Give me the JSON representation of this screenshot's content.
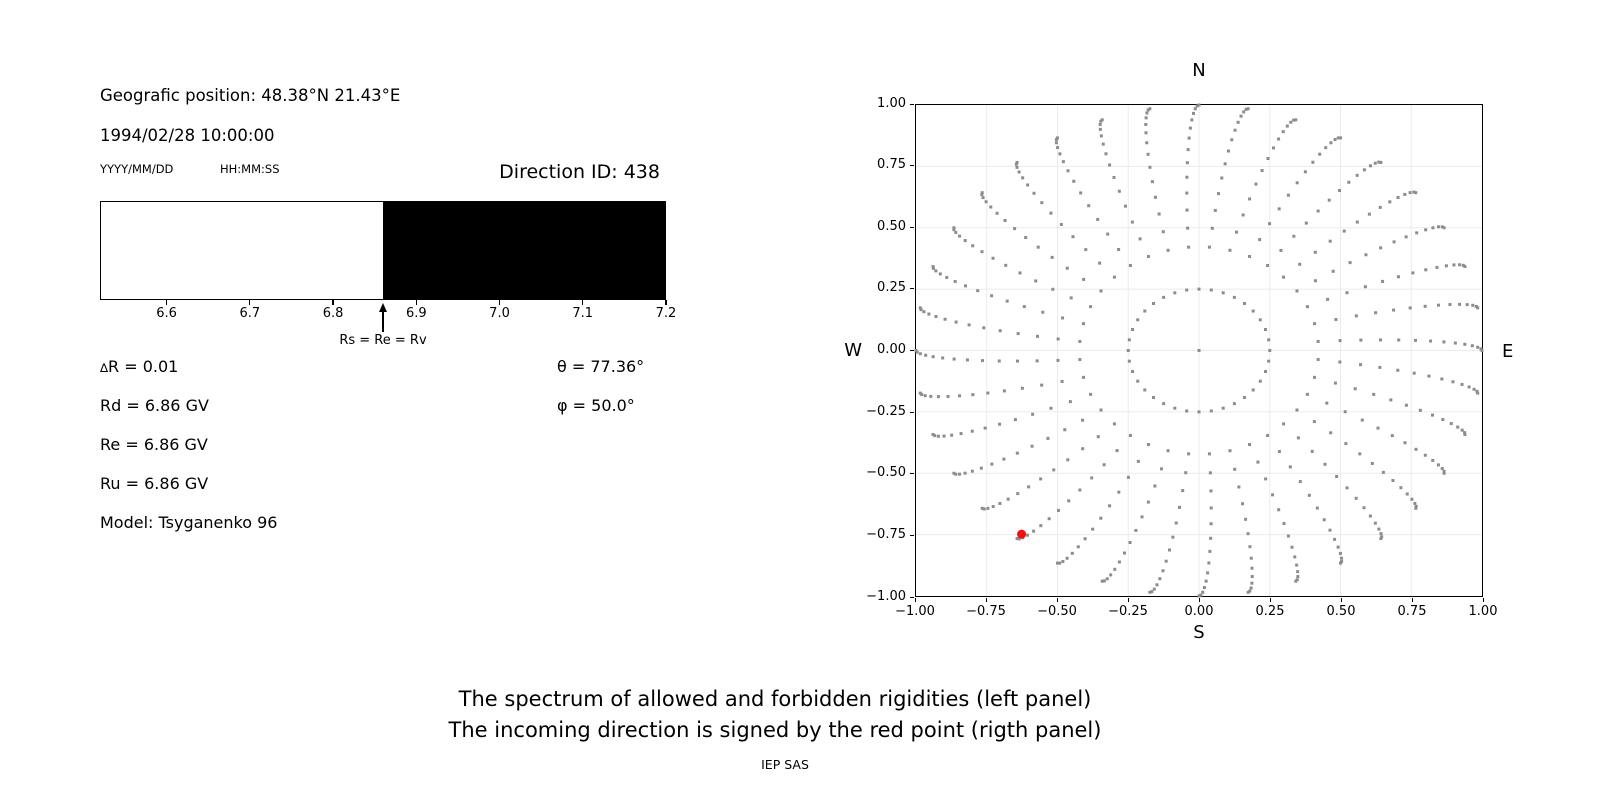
{
  "header": {
    "geo_position": "Geografic position: 48.38°N 21.43°E",
    "datetime": "1994/02/28 10:00:00",
    "date_format": "YYYY/MM/DD",
    "time_format": "HH:MM:SS"
  },
  "parameters": {
    "delta_symbol": "∆",
    "delta_rest": "R = 0.01",
    "rd": "Rd = 6.86 GV",
    "re": "Re = 6.86 GV",
    "ru": "Ru = 6.86 GV",
    "model": "Model: Tsyganenko 96",
    "theta": "θ = 77.36°",
    "phi": "φ = 50.0°"
  },
  "footer": {
    "caption_line1": "The spectrum of allowed and forbidden rigidities (left panel)",
    "caption_line2": "The incoming direction is signed by the red point (rigth panel)",
    "credit": "IEP SAS"
  },
  "chart_data": [
    {
      "type": "bar",
      "title": "Direction ID: 438",
      "xlim": [
        6.52,
        7.2
      ],
      "xticks": [
        6.6,
        6.7,
        6.8,
        6.9,
        7.0,
        7.1,
        7.2
      ],
      "tick_decimals": 1,
      "segments": [
        {
          "name": "allowed-rigidities",
          "from": 6.52,
          "to": 6.86,
          "color": "#ffffff"
        },
        {
          "name": "forbidden-rigidities",
          "from": 6.86,
          "to": 7.2,
          "color": "#000000"
        }
      ],
      "annotation": {
        "label": "Rs = Re = Rv",
        "x": 6.86
      }
    },
    {
      "type": "scatter",
      "compass": {
        "north": "N",
        "east": "E",
        "south": "S",
        "west": "W"
      },
      "xlim": [
        -1,
        1
      ],
      "ylim": [
        -1,
        1
      ],
      "xticks": [
        -1,
        -0.75,
        -0.5,
        -0.25,
        0,
        0.25,
        0.5,
        0.75,
        1
      ],
      "yticks": [
        -1,
        -0.75,
        -0.5,
        -0.25,
        0,
        0.25,
        0.5,
        0.75,
        1
      ],
      "tick_decimals": 2,
      "grid": true,
      "grid_color": "#ebebeb",
      "series": [
        {
          "name": "direction-grid-dots",
          "marker": "square",
          "color": "#8c8c8c",
          "generator": {
            "azimuth_count": 36,
            "azimuth_step_deg": 10,
            "zenith_start_deg": 25,
            "zenith_end_deg": 90,
            "zenith_step_deg": 5,
            "projection": "orthographic r = sin(zenith)",
            "swirl_deg": 5,
            "inner_ring_radius": 0.25,
            "center_dot": true
          }
        },
        {
          "name": "incoming-direction",
          "marker": "circle",
          "color": "#ee1111",
          "points": [
            [
              -0.627,
              -0.748
            ]
          ]
        }
      ]
    }
  ]
}
